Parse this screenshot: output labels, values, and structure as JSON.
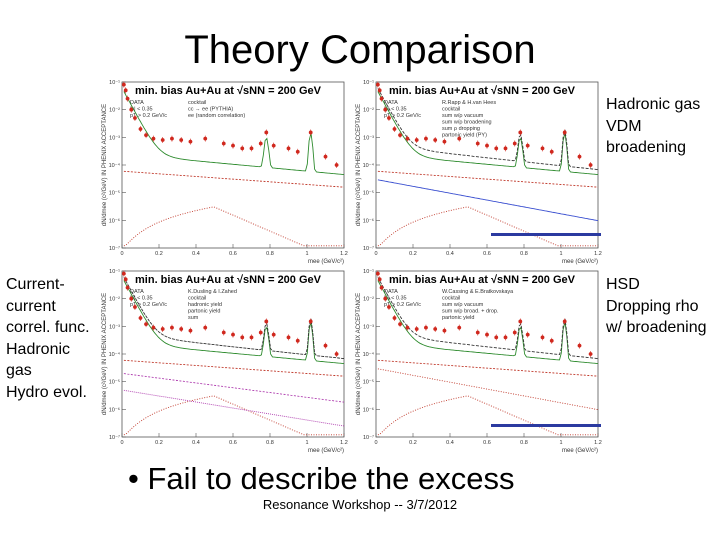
{
  "slide": {
    "title": "Theory Comparison",
    "bullet": "• Fail to describe the excess",
    "footer": "Resonance Workshop -- 3/7/2012",
    "labels": {
      "top_right": "Hadronic gas\nVDM\nbroadening",
      "bottom_left": "Current-\ncurrent\ncorrel. func.\nHadronic\ngas\nHydro evol.",
      "bottom_right": "HSD\nDropping rho\nw/ broadening"
    }
  },
  "panels": [
    {
      "title": "min. bias Au+Au at √sNN = 200 GeV",
      "legend_left": [
        "DATA",
        "|y| < 0.35",
        "pT > 0.2 GeV/c"
      ],
      "legend_right": [
        "cocktail",
        "cc → ee (PYTHIA)",
        "ee (random correlation)"
      ],
      "xlabel": "mee (GeV/c²)",
      "ylabel": "dN/dmee (c²/GeV) IN PHENIX ACCEPTANCE"
    },
    {
      "title": "min. bias Au+Au at √sNN = 200 GeV",
      "legend_left": [
        "DATA",
        "|y| < 0.35",
        "pT > 0.2 GeV/c"
      ],
      "legend_right": [
        "R.Rapp & H.van Hees",
        "cocktail",
        "sum w/ρ vacuum",
        "sum w/ρ broadening",
        "sum ρ dropping",
        "partonic yield (PY)"
      ],
      "xlabel": "mee (GeV/c²)",
      "ylabel": "dN/dmee (c²/GeV) IN PHENIX ACCEPTANCE"
    },
    {
      "title": "min. bias Au+Au at √sNN = 200 GeV",
      "legend_left": [
        "DATA",
        "|y| < 0.35",
        "pT > 0.2 GeV/c"
      ],
      "legend_right": [
        "K.Dusling & I.Zahed",
        "cocktail",
        "hadronic yield",
        "partonic yield",
        "sum"
      ],
      "xlabel": "mee (GeV/c²)",
      "ylabel": "dN/dmee (c²/GeV) IN PHENIX ACCEPTANCE"
    },
    {
      "title": "min. bias Au+Au at √sNN = 200 GeV",
      "legend_left": [
        "DATA",
        "|y| < 0.35",
        "pT > 0.2 GeV/c"
      ],
      "legend_right": [
        "W.Cassing & E.Bratkovskaya",
        "cocktail",
        "sum w/ρ vacuum",
        "sum w/ρ broad. + drop.",
        "partonic yield"
      ],
      "xlabel": "mee (GeV/c²)",
      "ylabel": "dN/dmee (c²/GeV) IN PHENIX ACCEPTANCE"
    }
  ],
  "axis": {
    "x_ticks": [
      "0",
      "0.2",
      "0.4",
      "0.6",
      "0.8",
      "1",
      "1.2"
    ],
    "y_ticks": [
      "10⁻⁷",
      "10⁻⁶",
      "10⁻⁵",
      "10⁻⁴",
      "10⁻³",
      "10⁻²",
      "10⁻¹"
    ]
  },
  "colors": {
    "data": "#d0281e",
    "cocktail": "#2e8b2e",
    "charm": "#c0392b",
    "model1": "#333333",
    "model2": "#3a4fd0",
    "model3": "#b040b0",
    "accent_bar": "#2b3aa0"
  },
  "chart_data": {
    "type": "scatter",
    "x": [
      0.01,
      0.02,
      0.03,
      0.05,
      0.07,
      0.1,
      0.13,
      0.17,
      0.22,
      0.27,
      0.32,
      0.37,
      0.45,
      0.55,
      0.6,
      0.65,
      0.7,
      0.75,
      0.78,
      0.82,
      0.9,
      0.95,
      1.02,
      1.1,
      1.16
    ],
    "series": [
      {
        "name": "DATA",
        "values": [
          0.08,
          0.05,
          0.025,
          0.01,
          0.005,
          0.002,
          0.0012,
          0.0009,
          0.0008,
          0.0009,
          0.0008,
          0.0007,
          0.0009,
          0.0006,
          0.0005,
          0.0004,
          0.0004,
          0.0006,
          0.0015,
          0.0005,
          0.0004,
          0.0003,
          0.0015,
          0.0002,
          0.0001
        ]
      }
    ],
    "xlim": [
      0,
      1.2
    ],
    "ylog": true,
    "ylim": [
      1e-07,
      0.1
    ]
  }
}
